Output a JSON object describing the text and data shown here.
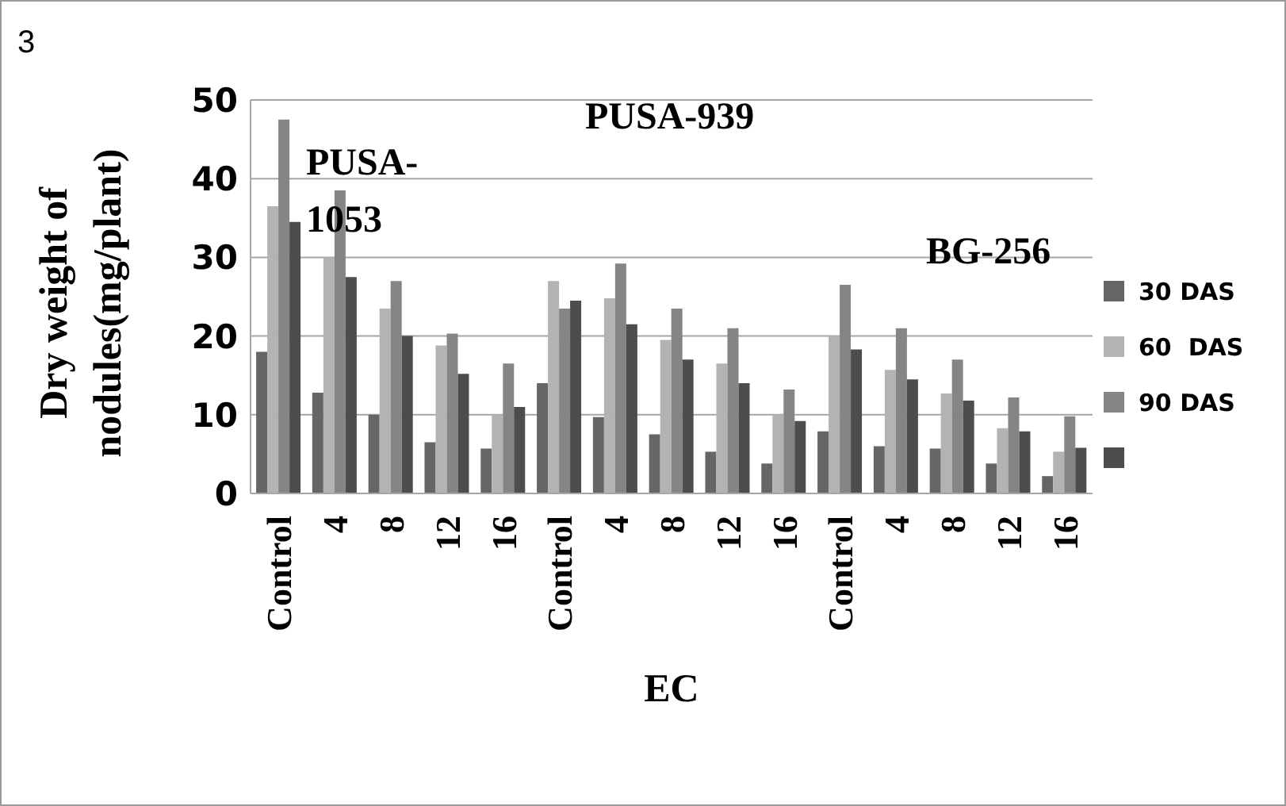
{
  "chart_data": {
    "type": "bar",
    "xlabel": "EC",
    "ylabel": "Dry weight of nodules(mg/plant)",
    "categories": [
      "Control",
      "4",
      "8",
      "12",
      "16",
      "Control",
      "4",
      "8",
      "12",
      "16",
      "Control",
      "4",
      "8",
      "12",
      "16"
    ],
    "series": [
      {
        "name": "30 DAS",
        "color": "#666666",
        "values": [
          18,
          12.8,
          10,
          6.5,
          5.7,
          14,
          9.7,
          7.5,
          5.3,
          3.8,
          7.9,
          6,
          5.7,
          3.8,
          2.2
        ]
      },
      {
        "name": "60  DAS",
        "color": "#b3b3b3",
        "values": [
          36.5,
          30,
          23.5,
          18.8,
          10,
          27,
          24.8,
          19.5,
          16.5,
          10,
          20,
          15.7,
          12.7,
          8.3,
          5.3
        ]
      },
      {
        "name": "90 DAS",
        "color": "#858585",
        "values": [
          47.5,
          38.5,
          27,
          20.3,
          16.5,
          23.5,
          29.2,
          23.5,
          21,
          13.2,
          26.5,
          21,
          17,
          12.2,
          9.8
        ]
      },
      {
        "color": "#4d4d4d",
        "values": [
          34.5,
          27.5,
          20,
          15.2,
          11,
          24.5,
          21.5,
          17,
          14,
          9.2,
          18.3,
          14.5,
          11.8,
          7.9,
          5.8
        ]
      }
    ],
    "ylim": [
      0,
      50
    ],
    "yticks": [
      0,
      10,
      20,
      30,
      40,
      50
    ],
    "grid": "y",
    "legend": "right",
    "annotations": [
      "3",
      "PUSA-1053",
      "PUSA-939",
      "BG-256"
    ]
  }
}
